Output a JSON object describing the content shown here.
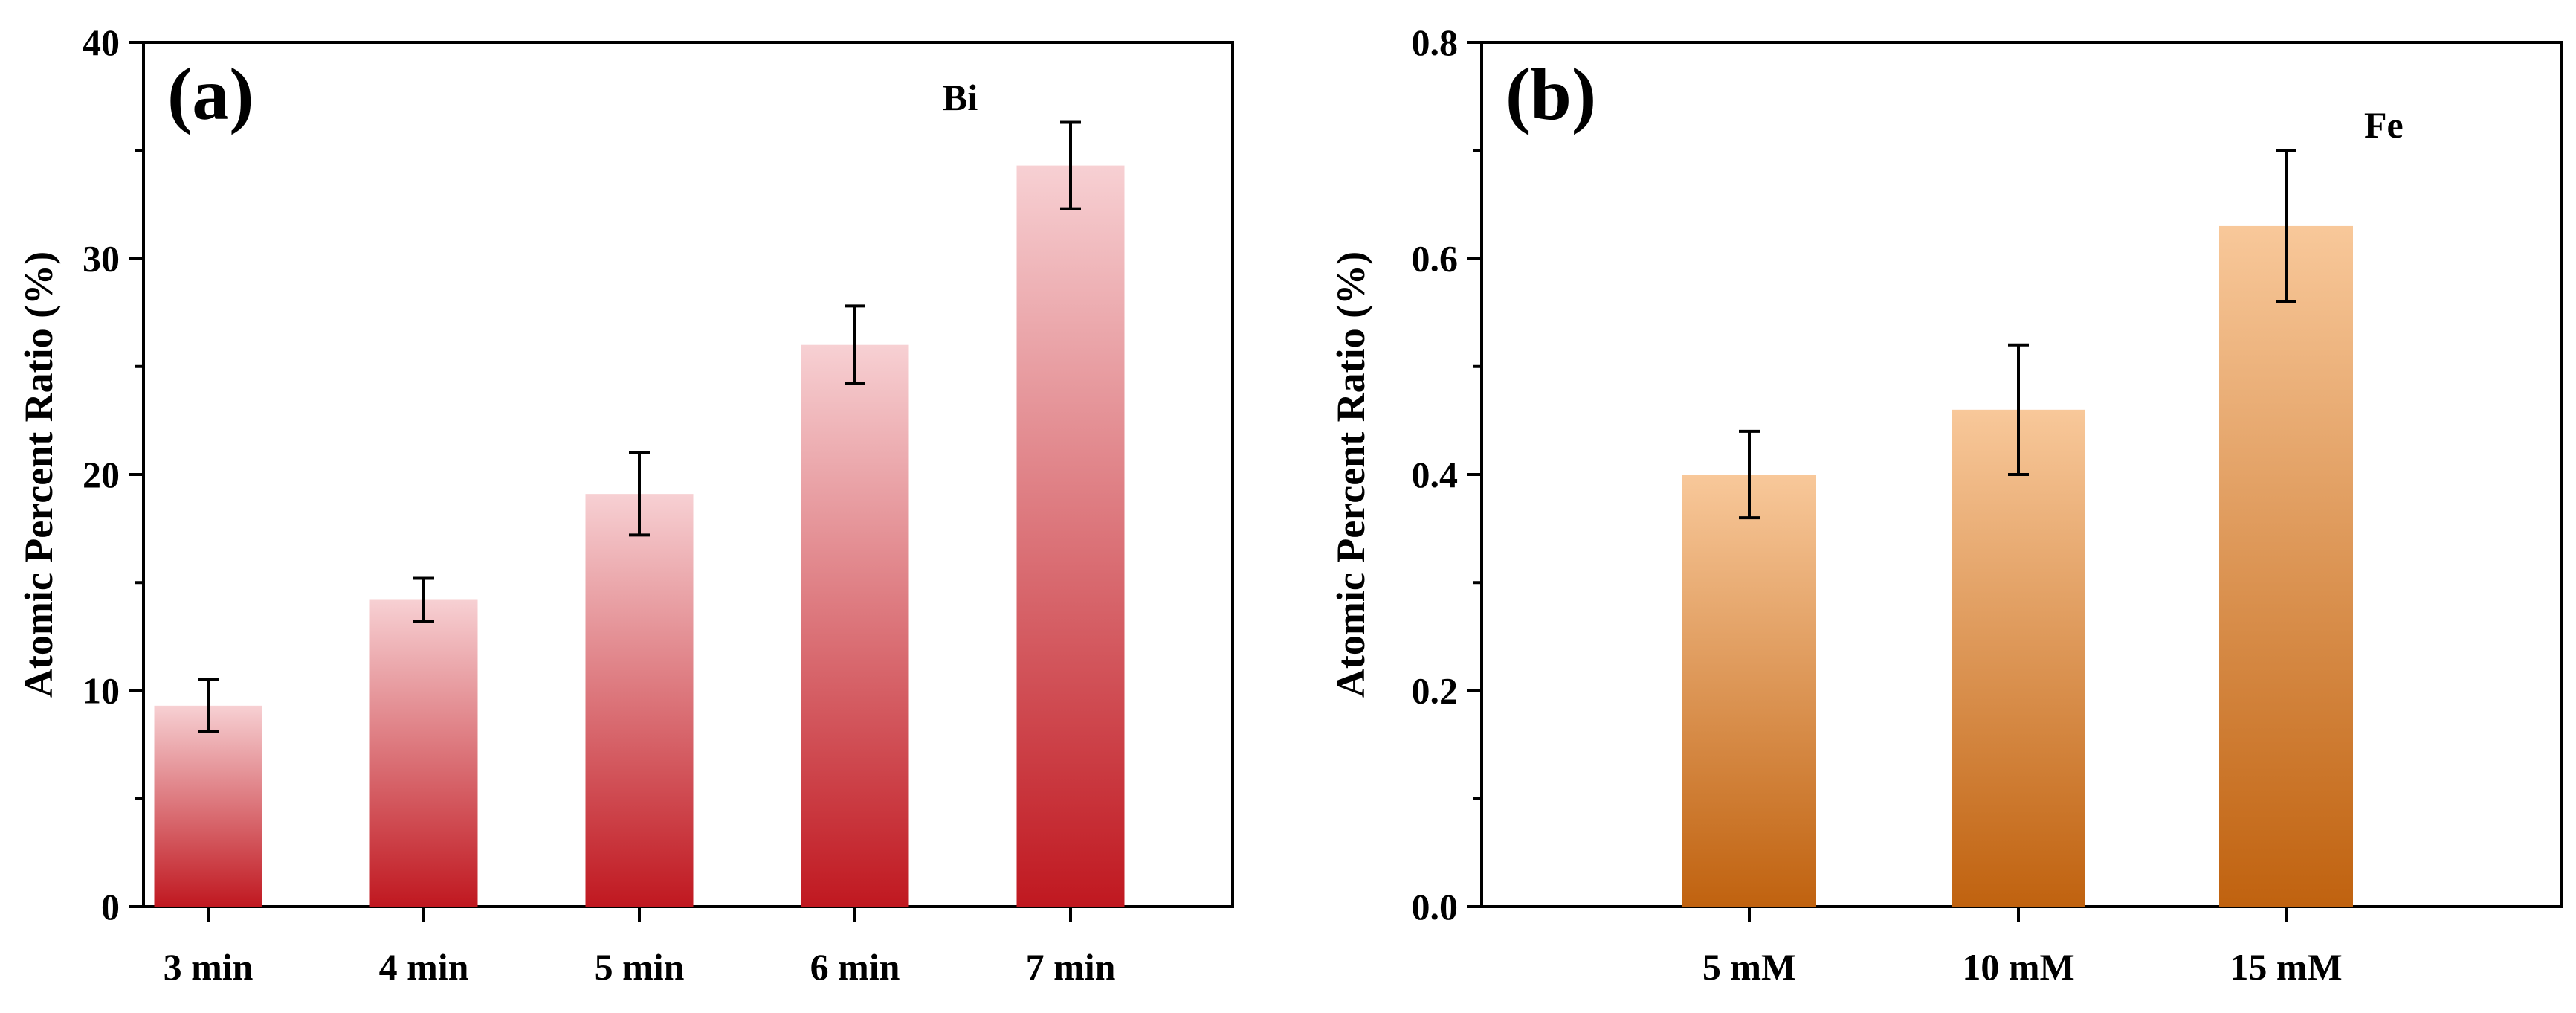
{
  "chart_data": [
    {
      "type": "bar",
      "panel_label": "(a)",
      "element_label": "Bi",
      "categories": [
        "3 min",
        "4 min",
        "5 min",
        "6 min",
        "7 min"
      ],
      "values": [
        9.3,
        14.2,
        19.1,
        26.0,
        34.3
      ],
      "errors": [
        1.2,
        1.0,
        1.9,
        1.8,
        2.0
      ],
      "ylabel": "Atomic Percent Ratio (%)",
      "ylim": [
        0,
        40
      ],
      "yticks": [
        "0",
        "10",
        "20",
        "30",
        "40"
      ],
      "color_top": "#f7d0d3",
      "color_bottom": "#c01820"
    },
    {
      "type": "bar",
      "panel_label": "(b)",
      "element_label": "Fe",
      "categories": [
        "5 mM",
        "10 mM",
        "15 mM"
      ],
      "values": [
        0.4,
        0.46,
        0.63
      ],
      "errors": [
        0.04,
        0.06,
        0.07
      ],
      "ylabel": "Atomic Percent Ratio (%)",
      "ylim": [
        0,
        0.8
      ],
      "yticks": [
        "0.0",
        "0.2",
        "0.4",
        "0.6",
        "0.8"
      ],
      "color_top": "#f8c89a",
      "color_bottom": "#c0620f"
    }
  ]
}
